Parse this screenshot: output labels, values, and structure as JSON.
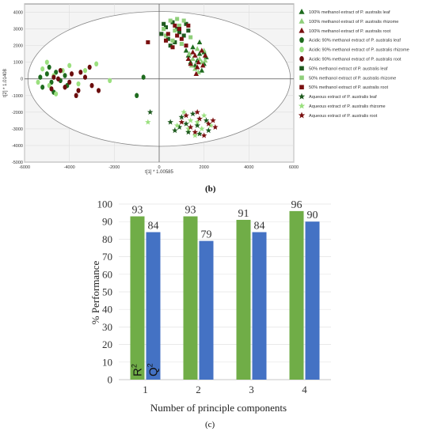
{
  "chart_data": [
    {
      "type": "scatter",
      "xlabel": "t[1] * 1.00585",
      "ylabel": "t[2] * 1.01408",
      "xlim": [
        -6000,
        6000
      ],
      "ylim": [
        -5000,
        4500
      ],
      "x_ticks": [
        "-6000",
        "-4000",
        "-2000",
        "0",
        "2000",
        "4000",
        "6000"
      ],
      "y_ticks": [
        "-5000",
        "-4000",
        "-3000",
        "-2000",
        "-1000",
        "0",
        "1000",
        "2000",
        "3000",
        "4000"
      ],
      "grid": true,
      "legend_position": "right",
      "ellipse": {
        "center": [
          0,
          0
        ],
        "rx": 5850,
        "ry": 4050
      },
      "series": [
        {
          "name": "100% methanol extract of P. australis leaf",
          "marker": "triangle",
          "color": "#1e6b1e",
          "points": [
            [
              1500,
              1900
            ],
            [
              1800,
              2200
            ],
            [
              2000,
              1600
            ],
            [
              1300,
              1400
            ],
            [
              1700,
              1100
            ],
            [
              2100,
              1300
            ],
            [
              1600,
              800
            ],
            [
              1900,
              500
            ],
            [
              1400,
              1000
            ],
            [
              1200,
              1700
            ],
            [
              2000,
              900
            ],
            [
              1800,
              1500
            ]
          ]
        },
        {
          "name": "100% methanol extract of P. australis rhizome",
          "marker": "triangle",
          "color": "#8fcf7a",
          "points": [
            [
              1700,
              1800
            ],
            [
              1500,
              1200
            ],
            [
              1900,
              1000
            ],
            [
              1350,
              1500
            ],
            [
              2000,
              1700
            ],
            [
              1600,
              600
            ],
            [
              1800,
              1200
            ],
            [
              1450,
              800
            ],
            [
              1750,
              400
            ],
            [
              2050,
              1100
            ]
          ]
        },
        {
          "name": "100% methanol extract of P. australis root",
          "marker": "triangle",
          "color": "#7a1010",
          "points": [
            [
              1600,
              1400
            ],
            [
              1900,
              1700
            ],
            [
              1400,
              900
            ],
            [
              1700,
              700
            ],
            [
              2050,
              1400
            ],
            [
              1500,
              1600
            ],
            [
              1750,
              1000
            ],
            [
              1300,
              1200
            ],
            [
              1950,
              800
            ],
            [
              1650,
              300
            ]
          ]
        },
        {
          "name": "Acidic 90% methanol extract of P. australis leaf",
          "marker": "circle",
          "color": "#1e6b1e",
          "points": [
            [
              -5000,
              300
            ],
            [
              -4800,
              -200
            ],
            [
              -4600,
              400
            ],
            [
              -4400,
              -100
            ],
            [
              -5200,
              -500
            ],
            [
              -4200,
              200
            ],
            [
              -4900,
              700
            ],
            [
              -4700,
              -800
            ],
            [
              -5300,
              100
            ],
            [
              -4100,
              -400
            ],
            [
              -700,
              100
            ],
            [
              -1000,
              -1000
            ]
          ]
        },
        {
          "name": "Acidic 90% methanol extract of P. australis rhizome",
          "marker": "circle",
          "color": "#9be07f",
          "points": [
            [
              -5200,
              600
            ],
            [
              -4900,
              -400
            ],
            [
              -5000,
              1000
            ],
            [
              -4300,
              500
            ],
            [
              -4600,
              -900
            ],
            [
              -4000,
              800
            ],
            [
              -3300,
              500
            ],
            [
              -2800,
              900
            ],
            [
              -5400,
              -200
            ],
            [
              -4700,
              200
            ],
            [
              -3600,
              -300
            ],
            [
              -2200,
              -100
            ]
          ]
        },
        {
          "name": "Acidic 90% methanol extract of P. australis root",
          "marker": "circle",
          "color": "#6b0d0d",
          "points": [
            [
              -4500,
              0
            ],
            [
              -4200,
              -500
            ],
            [
              -3900,
              300
            ],
            [
              -3600,
              -700
            ],
            [
              -3300,
              100
            ],
            [
              -3000,
              -400
            ],
            [
              -4800,
              -600
            ],
            [
              -4400,
              500
            ],
            [
              -3700,
              -1000
            ],
            [
              -2700,
              -700
            ],
            [
              -3100,
              700
            ],
            [
              -4000,
              -200
            ],
            [
              -3500,
              400
            ],
            [
              -4700,
              100
            ]
          ]
        },
        {
          "name": "50% methanol extract of P. australis leaf",
          "marker": "square",
          "color": "#1e5a1e",
          "points": [
            [
              300,
              3100
            ],
            [
              600,
              3400
            ],
            [
              900,
              2800
            ],
            [
              400,
              2400
            ],
            [
              800,
              3000
            ],
            [
              1200,
              3300
            ],
            [
              100,
              2700
            ],
            [
              700,
              2200
            ],
            [
              1100,
              2600
            ],
            [
              500,
              2000
            ],
            [
              1300,
              2900
            ],
            [
              200,
              3300
            ]
          ]
        },
        {
          "name": "50% methanol extract of P. australis rhizome",
          "marker": "square",
          "color": "#8fcf7a",
          "points": [
            [
              500,
              3500
            ],
            [
              900,
              3200
            ],
            [
              300,
              2600
            ],
            [
              700,
              2900
            ],
            [
              1100,
              3500
            ],
            [
              1400,
              2500
            ],
            [
              600,
              2300
            ],
            [
              1000,
              2100
            ],
            [
              200,
              3000
            ],
            [
              800,
              3600
            ]
          ]
        },
        {
          "name": "50% methanol extract of P. australis root",
          "marker": "square",
          "color": "#7a1010",
          "points": [
            [
              -500,
              2200
            ],
            [
              400,
              2700
            ],
            [
              700,
              3200
            ],
            [
              1000,
              2400
            ],
            [
              600,
              1900
            ],
            [
              1200,
              2000
            ],
            [
              900,
              3000
            ],
            [
              300,
              2300
            ],
            [
              1300,
              3200
            ],
            [
              800,
              2600
            ]
          ]
        },
        {
          "name": "Aqueous extract of P. australis leaf",
          "marker": "star",
          "color": "#1e5a1e",
          "points": [
            [
              -400,
              -2000
            ],
            [
              500,
              -2600
            ],
            [
              900,
              -2900
            ],
            [
              1300,
              -3200
            ],
            [
              1700,
              -2800
            ],
            [
              2100,
              -2500
            ],
            [
              1000,
              -2300
            ],
            [
              1500,
              -2100
            ],
            [
              1800,
              -3300
            ],
            [
              1200,
              -2700
            ],
            [
              2200,
              -3100
            ],
            [
              700,
              -3100
            ]
          ]
        },
        {
          "name": "Aqueous extract of P. australis rhizome",
          "marker": "star",
          "color": "#9be07f",
          "points": [
            [
              -500,
              -2600
            ],
            [
              1100,
              -2000
            ],
            [
              1400,
              -2500
            ],
            [
              1900,
              -3000
            ],
            [
              2300,
              -2800
            ],
            [
              800,
              -2800
            ],
            [
              1600,
              -3400
            ],
            [
              2000,
              -2200
            ],
            [
              1300,
              -3000
            ],
            [
              1700,
              -2600
            ]
          ]
        },
        {
          "name": "Aqueous extract of P. australis root",
          "marker": "star",
          "color": "#7a1010",
          "points": [
            [
              1000,
              -2600
            ],
            [
              1400,
              -2900
            ],
            [
              1800,
              -2400
            ],
            [
              2200,
              -2700
            ],
            [
              2500,
              -2900
            ],
            [
              1600,
              -3200
            ],
            [
              2000,
              -3400
            ],
            [
              1200,
              -2200
            ],
            [
              2400,
              -2500
            ],
            [
              1700,
              -2000
            ]
          ]
        }
      ]
    },
    {
      "type": "bar",
      "xlabel": "Number of principle components",
      "ylabel": "% Performance",
      "categories": [
        "1",
        "2",
        "3",
        "4"
      ],
      "ylim": [
        0,
        100
      ],
      "y_ticks": [
        "0",
        "10",
        "20",
        "30",
        "40",
        "50",
        "60",
        "70",
        "80",
        "90",
        "100"
      ],
      "series": [
        {
          "name": "R2",
          "color": "#70ad47",
          "values": [
            93,
            93,
            91,
            96
          ]
        },
        {
          "name": "Q2",
          "color": "#4472c4",
          "values": [
            84,
            79,
            84,
            90
          ]
        }
      ],
      "series_label_text": [
        [
          "R",
          "2"
        ],
        [
          "Q",
          "2"
        ]
      ]
    }
  ],
  "panel_labels": {
    "b": "(b)",
    "c": "(c)"
  }
}
